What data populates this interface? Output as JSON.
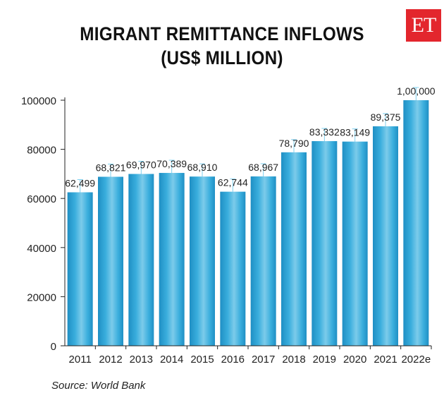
{
  "logo": {
    "text": "ET"
  },
  "source": "Source: World Bank",
  "chart_data": {
    "type": "bar",
    "title_lines": [
      "MIGRANT REMITTANCE INFLOWS",
      "(US$ MILLION)"
    ],
    "categories": [
      "2011",
      "2012",
      "2013",
      "2014",
      "2015",
      "2016",
      "2017",
      "2018",
      "2019",
      "2020",
      "2021",
      "2022e"
    ],
    "values": [
      62499,
      68821,
      69970,
      70389,
      68910,
      62744,
      68967,
      78790,
      83332,
      83149,
      89375,
      100000
    ],
    "data_labels": [
      "62,499",
      "68,821",
      "69,970",
      "70,389",
      "68,910",
      "62,744",
      "68,967",
      "78,790",
      "83,332",
      "83,149",
      "89,375",
      "1,00,000"
    ],
    "yticks": [
      0,
      20000,
      40000,
      60000,
      80000,
      100000
    ],
    "ytick_labels": [
      "0",
      "20000",
      "40000",
      "60000",
      "80000",
      "100000"
    ],
    "ylim": [
      0,
      100000
    ],
    "xlabel": "",
    "ylabel": "",
    "grid": false,
    "colors": {
      "bar_light": "#7ccbea",
      "bar_mid": "#3aaedd",
      "bar_dark": "#1f8fc4",
      "error_line": "#7fd0ef",
      "axis": "#222222"
    }
  }
}
